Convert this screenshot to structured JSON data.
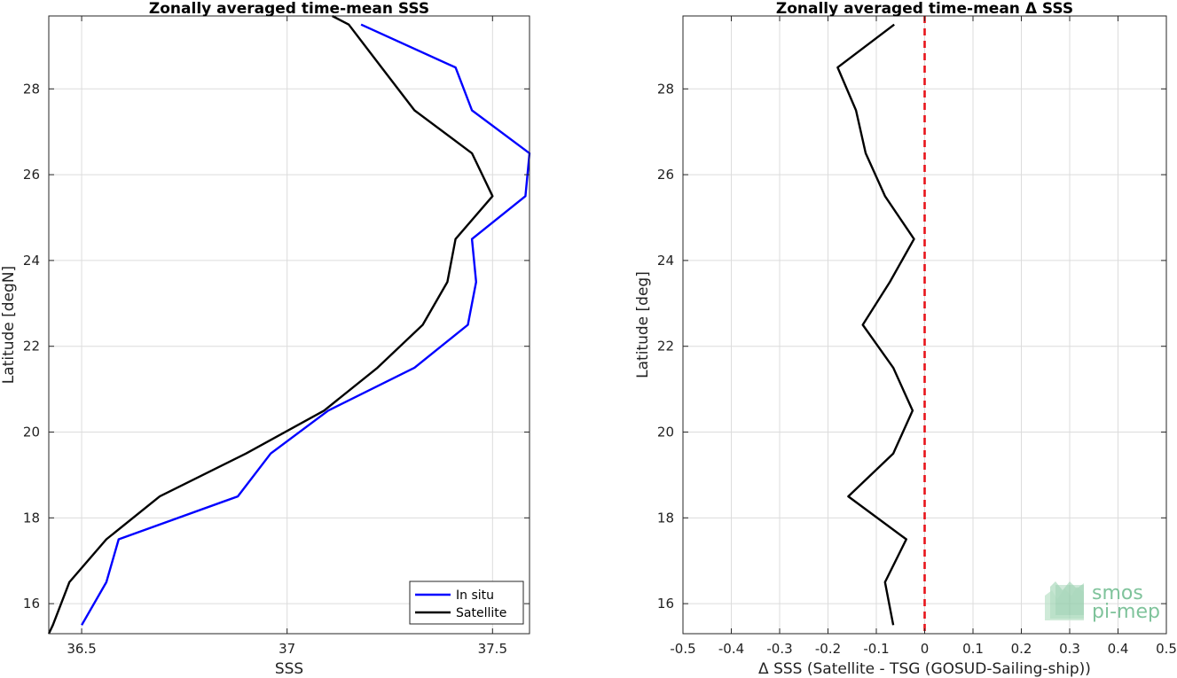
{
  "chart_data": [
    {
      "type": "line",
      "title": "Zonally averaged time-mean SSS",
      "xlabel": "SSS",
      "ylabel": "Latitude [degN]",
      "xlim": [
        36.42,
        37.59
      ],
      "ylim": [
        15.3,
        29.7
      ],
      "xticks": [
        36.5,
        37,
        37.5
      ],
      "yticks": [
        16,
        18,
        20,
        22,
        24,
        26,
        28
      ],
      "grid": true,
      "legend": "bottom-right",
      "series": [
        {
          "name": "In situ",
          "color": "#0000ff",
          "x": [
            36.5,
            36.56,
            36.59,
            36.88,
            36.96,
            37.1,
            37.31,
            37.44,
            37.46,
            37.45,
            37.58,
            37.59,
            37.45,
            37.41,
            37.18
          ],
          "y": [
            15.5,
            16.5,
            17.5,
            18.5,
            19.5,
            20.5,
            21.5,
            22.5,
            23.5,
            24.5,
            25.5,
            26.5,
            27.5,
            28.5,
            29.5
          ]
        },
        {
          "name": "Satellite",
          "color": "#000000",
          "x": [
            36.42,
            36.43,
            36.47,
            36.56,
            36.69,
            36.9,
            37.09,
            37.22,
            37.33,
            37.39,
            37.41,
            37.5,
            37.45,
            37.31,
            37.23,
            37.15,
            37.11
          ],
          "y": [
            15.3,
            15.5,
            16.5,
            17.5,
            18.5,
            19.5,
            20.5,
            21.5,
            22.5,
            23.5,
            24.5,
            25.5,
            26.5,
            27.5,
            28.5,
            29.5,
            29.7
          ]
        }
      ]
    },
    {
      "type": "line",
      "title": "Zonally averaged time-mean Δ SSS",
      "xlabel": "Δ SSS (Satellite - TSG (GOSUD-Sailing-ship))",
      "ylabel": "Latitude [deg]",
      "xlim": [
        -0.5,
        0.5
      ],
      "ylim": [
        15.3,
        29.7
      ],
      "xticks": [
        -0.5,
        -0.4,
        -0.3,
        -0.2,
        -0.1,
        0,
        0.1,
        0.2,
        0.3,
        0.4,
        0.5
      ],
      "xticklabels": [
        "-0.5",
        "-0.4",
        "-0.3",
        "-0.2",
        "-0.1",
        "0",
        "0.1",
        "0.2",
        "0.3",
        "0.4",
        "0.5"
      ],
      "yticks": [
        16,
        18,
        20,
        22,
        24,
        26,
        28
      ],
      "grid": true,
      "series": [
        {
          "color": "#000000",
          "x": [
            -0.065,
            -0.082,
            -0.038,
            -0.158,
            -0.065,
            -0.025,
            -0.065,
            -0.128,
            -0.072,
            -0.022,
            -0.082,
            -0.122,
            -0.142,
            -0.18,
            -0.063
          ],
          "y": [
            15.5,
            16.5,
            17.5,
            18.5,
            19.5,
            20.5,
            21.5,
            22.5,
            23.5,
            24.5,
            25.5,
            26.5,
            27.5,
            28.5,
            29.5
          ]
        }
      ],
      "reference_line": {
        "x": 0,
        "color": "#e8141a",
        "style": "dashed"
      }
    }
  ],
  "logo": {
    "line1": "smos",
    "line2": "pi-mep",
    "color": "#7fc39b"
  }
}
